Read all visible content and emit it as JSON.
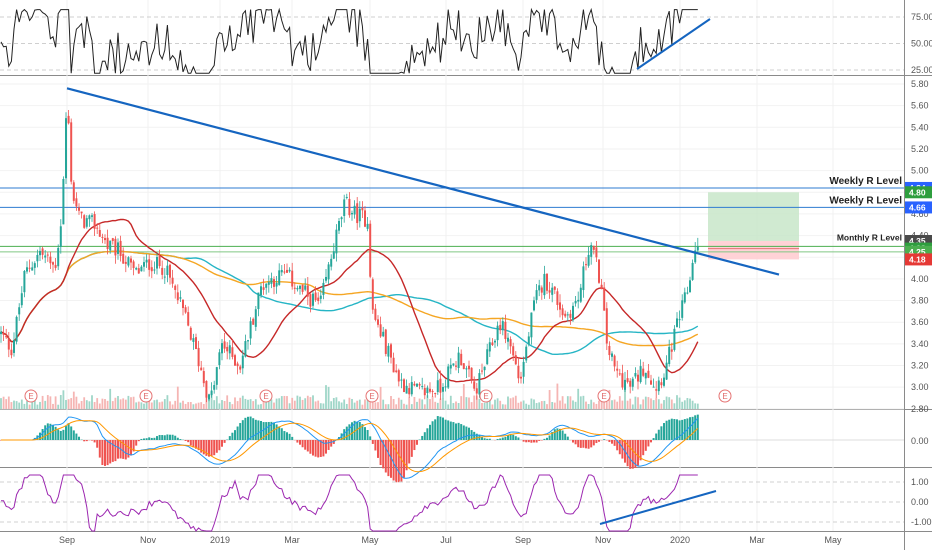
{
  "chart_data": {
    "type": "candlestick",
    "x_ticks": [
      "Sep",
      "Nov",
      "2019",
      "Mar",
      "May",
      "Jul",
      "Sep",
      "Nov",
      "2020",
      "Mar",
      "May"
    ],
    "price_axis": {
      "ticks": [
        "5.80",
        "5.60",
        "5.40",
        "5.20",
        "5.00",
        "4.80",
        "4.60",
        "4.40",
        "4.20",
        "4.00",
        "3.80",
        "3.60",
        "3.40",
        "3.20",
        "3.00",
        "2.80"
      ],
      "range": [
        2.78,
        5.85
      ]
    },
    "rsi_axis": {
      "ticks": [
        "75.00",
        "50.00",
        "25.00"
      ],
      "range": [
        18,
        88
      ]
    },
    "macd_axis": {
      "ticks": [
        "0.00"
      ]
    },
    "osc_axis": {
      "ticks": [
        "1.00",
        "0.00",
        "-1.00"
      ],
      "range": [
        -1.5,
        1.5
      ]
    },
    "price_tags": [
      {
        "value": 4.84,
        "text": "4.84",
        "color": "#2962ff"
      },
      {
        "value": 4.8,
        "text": "4.80",
        "color": "#2e9e3e"
      },
      {
        "value": 4.66,
        "text": "4.66",
        "color": "#2962ff"
      },
      {
        "value": 4.35,
        "text": "4.35",
        "color": "#4a4a4a"
      },
      {
        "value": 4.28,
        "text": "4.28",
        "color": "#2e9e3e"
      },
      {
        "value": 4.25,
        "text": "4.25",
        "color": "#4caf50"
      },
      {
        "value": 4.18,
        "text": "4.18",
        "color": "#e53935"
      }
    ],
    "levels": [
      {
        "value": 4.84,
        "text": "Weekly R Level",
        "color": "#2e7bd1"
      },
      {
        "value": 4.66,
        "text": "Weekly R Level",
        "color": "#2e7bd1"
      },
      {
        "value": 4.3,
        "text": "Monthly R Level",
        "color": "#4caf50"
      }
    ],
    "trendline": {
      "from": [
        "2018-09-01",
        5.76
      ],
      "to": [
        "2020-03-20",
        4.04
      ],
      "color": "#1565c0"
    },
    "position_box": {
      "entry": 4.28,
      "target": 4.8,
      "stop": 4.18,
      "start": "2020-01-15",
      "end": "2020-03-12"
    },
    "earnings_marker": "E",
    "moving_averages": [
      {
        "color": "#26b5c5"
      },
      {
        "color": "#f5a623"
      },
      {
        "color": "#c62828"
      }
    ],
    "colors": {
      "up": "#26a69a",
      "down": "#ef5350",
      "rsi": "#222222",
      "osc": "#9c27b0",
      "macd": "#2196f3",
      "signal": "#ff9800",
      "trend_up": "#1565c0"
    }
  }
}
